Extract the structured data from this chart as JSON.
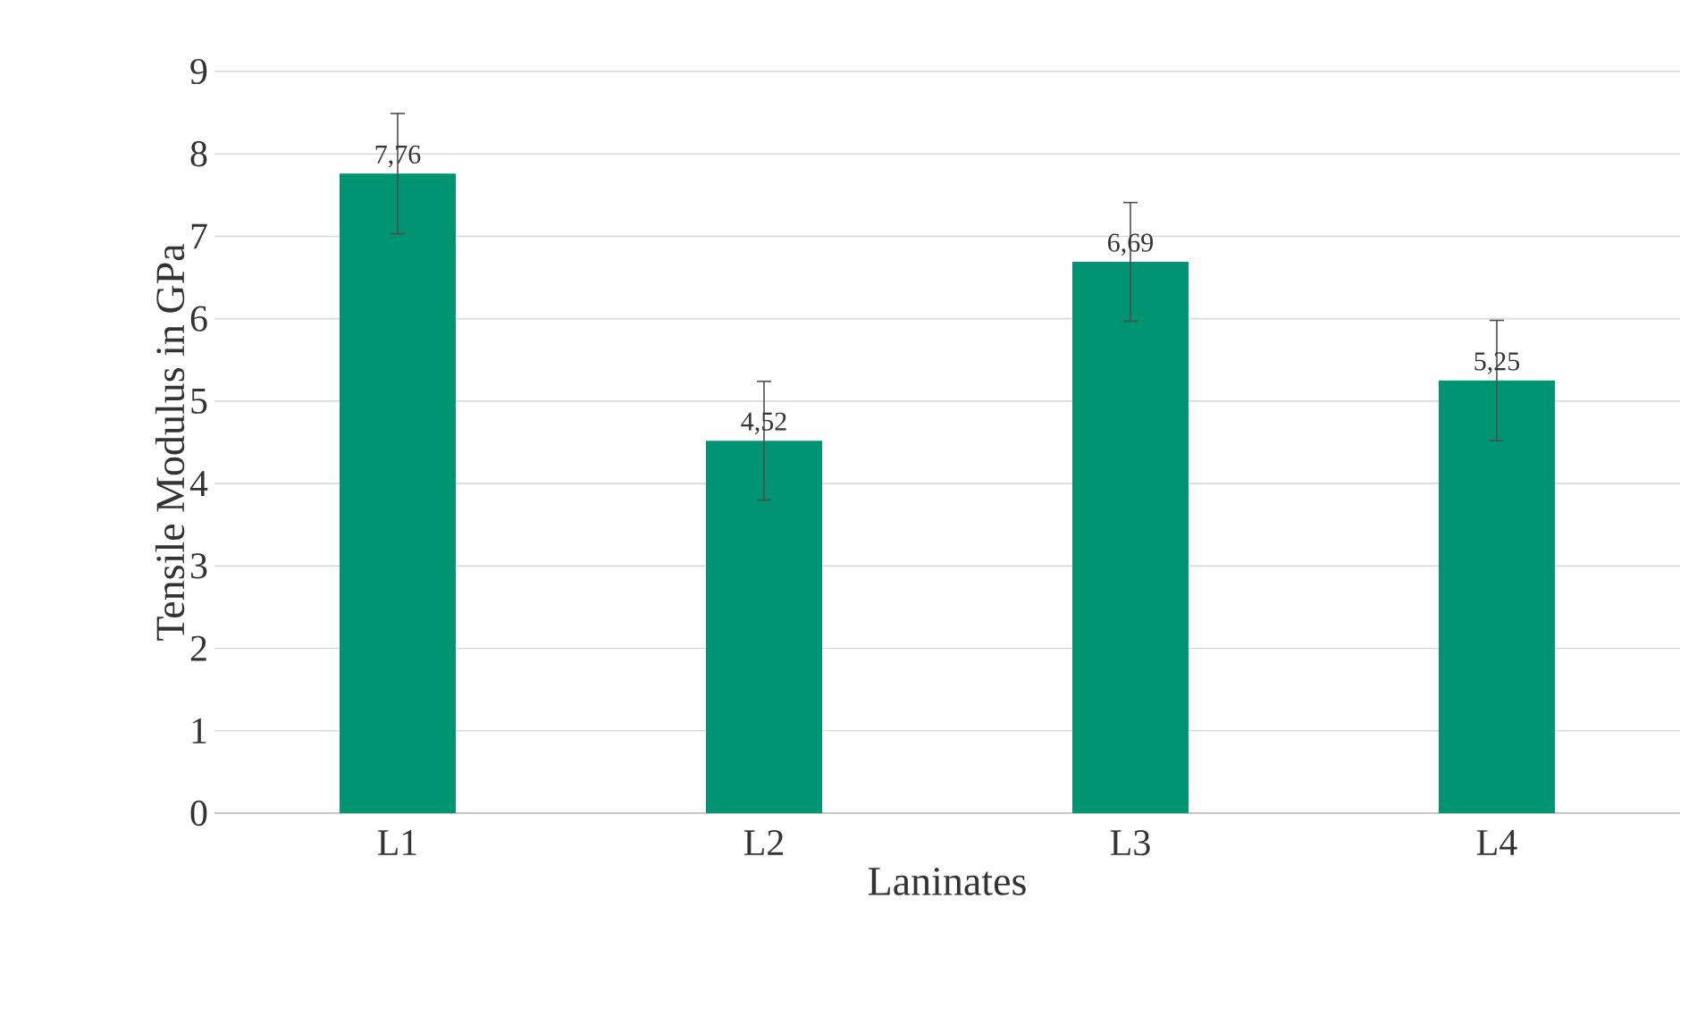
{
  "chart_data": {
    "type": "bar",
    "xlabel": "Laninates",
    "ylabel": "Tensile Modulus in GPa",
    "categories": [
      "L1",
      "L2",
      "L3",
      "L4"
    ],
    "values": [
      7.76,
      4.52,
      6.69,
      5.25
    ],
    "value_labels": [
      "7,76",
      "4,52",
      "6,69",
      "5,25"
    ],
    "errors": [
      0.73,
      0.72,
      0.72,
      0.73
    ],
    "color": "#009473",
    "ylim": [
      0,
      9
    ],
    "yticks": [
      0,
      1,
      2,
      3,
      4,
      5,
      6,
      7,
      8,
      9
    ],
    "grid": "y"
  }
}
